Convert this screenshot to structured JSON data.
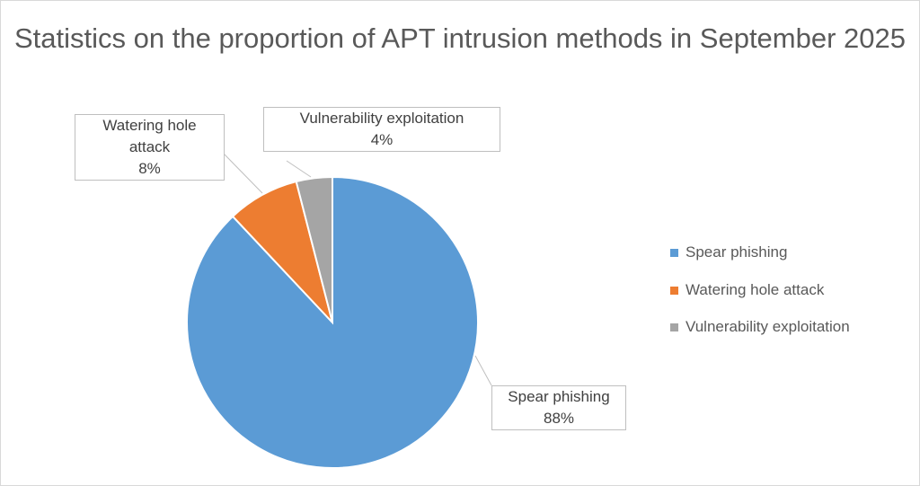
{
  "chart_data": {
    "type": "pie",
    "title": "Statistics on the proportion of APT intrusion methods in September 2025",
    "slices": [
      {
        "label": "Spear phishing",
        "value": 88,
        "display": "88%",
        "color": "#5b9bd5"
      },
      {
        "label": "Watering hole attack",
        "value": 8,
        "display": "8%",
        "color": "#ed7d31"
      },
      {
        "label": "Vulnerability exploitation",
        "value": 4,
        "display": "4%",
        "color": "#a5a5a5"
      }
    ],
    "legend_placement": "right"
  }
}
